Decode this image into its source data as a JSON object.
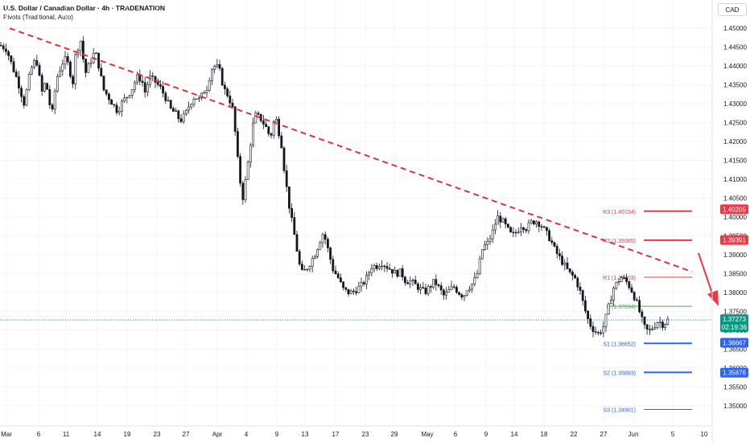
{
  "header": {
    "title": "U.S. Dollar / Canadian Dollar · 4h · TRADENATION",
    "subtitle": "Pivots (Traditional, Auto)",
    "currency": "CAD"
  },
  "colors": {
    "up": "#131722",
    "down": "#131722",
    "trend": "#e0303c",
    "pivot_r": "#f23645",
    "pivot_s": "#2962ff",
    "pivot_p": "#4caf50",
    "price_tag": "#089981",
    "grid": "#f0f3fa"
  },
  "chart_data": {
    "type": "candlestick",
    "ylim": [
      1.3455,
      1.4545
    ],
    "y_ticks": [
      "1.45000",
      "1.44500",
      "1.44000",
      "1.43500",
      "1.43000",
      "1.42500",
      "1.42000",
      "1.41500",
      "1.41000",
      "1.40500",
      "1.40000",
      "1.39500",
      "1.39000",
      "1.38500",
      "1.38000",
      "1.37500",
      "1.37000",
      "1.36500",
      "1.36000",
      "1.35500",
      "1.35000"
    ],
    "x_ticks": [
      "Mar",
      "6",
      "11",
      "14",
      "19",
      "23",
      "27",
      "Apr",
      "4",
      "9",
      "13",
      "17",
      "23",
      "29",
      "May",
      "6",
      "9",
      "14",
      "18",
      "22",
      "27",
      "Jun",
      "5",
      "10"
    ],
    "series_path": [
      [
        0,
        1.4455
      ],
      [
        8,
        1.4445
      ],
      [
        16,
        1.4395
      ],
      [
        22,
        1.436
      ],
      [
        30,
        1.43
      ],
      [
        38,
        1.439
      ],
      [
        45,
        1.442
      ],
      [
        52,
        1.433
      ],
      [
        56,
        1.4355
      ],
      [
        60,
        1.433
      ],
      [
        64,
        1.426
      ],
      [
        70,
        1.4365
      ],
      [
        76,
        1.44
      ],
      [
        80,
        1.442
      ],
      [
        86,
        1.44
      ],
      [
        90,
        1.4345
      ],
      [
        94,
        1.443
      ],
      [
        100,
        1.447
      ],
      [
        106,
        1.438
      ],
      [
        112,
        1.441
      ],
      [
        118,
        1.444
      ],
      [
        124,
        1.439
      ],
      [
        128,
        1.434
      ],
      [
        134,
        1.432
      ],
      [
        140,
        1.43
      ],
      [
        146,
        1.428
      ],
      [
        152,
        1.4305
      ],
      [
        158,
        1.432
      ],
      [
        164,
        1.434
      ],
      [
        170,
        1.437
      ],
      [
        176,
        1.4365
      ],
      [
        180,
        1.433
      ],
      [
        186,
        1.437
      ],
      [
        192,
        1.436
      ],
      [
        200,
        1.434
      ],
      [
        206,
        1.4315
      ],
      [
        212,
        1.4285
      ],
      [
        218,
        1.4275
      ],
      [
        224,
        1.4255
      ],
      [
        230,
        1.427
      ],
      [
        236,
        1.43
      ],
      [
        242,
        1.432
      ],
      [
        248,
        1.431
      ],
      [
        254,
        1.4335
      ],
      [
        258,
        1.4345
      ],
      [
        262,
        1.439
      ],
      [
        266,
        1.44
      ],
      [
        272,
        1.4395
      ],
      [
        278,
        1.434
      ],
      [
        284,
        1.432
      ],
      [
        290,
        1.428
      ],
      [
        294,
        1.418
      ],
      [
        298,
        1.41
      ],
      [
        302,
        1.405
      ],
      [
        308,
        1.414
      ],
      [
        314,
        1.424
      ],
      [
        318,
        1.427
      ],
      [
        324,
        1.426
      ],
      [
        330,
        1.424
      ],
      [
        336,
        1.421
      ],
      [
        342,
        1.427
      ],
      [
        346,
        1.423
      ],
      [
        350,
        1.419
      ],
      [
        354,
        1.411
      ],
      [
        360,
        1.402
      ],
      [
        366,
        1.395
      ],
      [
        370,
        1.39
      ],
      [
        374,
        1.385
      ],
      [
        380,
        1.386
      ],
      [
        386,
        1.388
      ],
      [
        392,
        1.3905
      ],
      [
        398,
        1.394
      ],
      [
        402,
        1.396
      ],
      [
        408,
        1.391
      ],
      [
        414,
        1.386
      ],
      [
        420,
        1.384
      ],
      [
        426,
        1.381
      ],
      [
        432,
        1.38
      ],
      [
        438,
        1.38
      ],
      [
        444,
        1.381
      ],
      [
        450,
        1.382
      ],
      [
        456,
        1.384
      ],
      [
        462,
        1.387
      ],
      [
        468,
        1.387
      ],
      [
        474,
        1.388
      ],
      [
        480,
        1.387
      ],
      [
        486,
        1.386
      ],
      [
        492,
        1.385
      ],
      [
        498,
        1.3855
      ],
      [
        504,
        1.383
      ],
      [
        510,
        1.383
      ],
      [
        516,
        1.382
      ],
      [
        522,
        1.381
      ],
      [
        528,
        1.38
      ],
      [
        534,
        1.3815
      ],
      [
        540,
        1.383
      ],
      [
        546,
        1.381
      ],
      [
        552,
        1.379
      ],
      [
        558,
        1.3805
      ],
      [
        564,
        1.3815
      ],
      [
        570,
        1.38
      ],
      [
        576,
        1.379
      ],
      [
        580,
        1.381
      ],
      [
        586,
        1.382
      ],
      [
        592,
        1.384
      ],
      [
        596,
        1.388
      ],
      [
        600,
        1.392
      ],
      [
        606,
        1.393
      ],
      [
        612,
        1.396
      ],
      [
        618,
        1.4
      ],
      [
        624,
        1.399
      ],
      [
        630,
        1.397
      ],
      [
        636,
        1.395
      ],
      [
        642,
        1.396
      ],
      [
        648,
        1.398
      ],
      [
        654,
        1.397
      ],
      [
        660,
        1.3985
      ],
      [
        666,
        1.399
      ],
      [
        672,
        1.398
      ],
      [
        678,
        1.396
      ],
      [
        684,
        1.394
      ],
      [
        690,
        1.391
      ],
      [
        696,
        1.389
      ],
      [
        702,
        1.387
      ],
      [
        708,
        1.385
      ],
      [
        714,
        1.384
      ],
      [
        720,
        1.381
      ],
      [
        726,
        1.376
      ],
      [
        732,
        1.372
      ],
      [
        738,
        1.37
      ],
      [
        744,
        1.369
      ],
      [
        750,
        1.371
      ],
      [
        756,
        1.376
      ],
      [
        762,
        1.381
      ],
      [
        768,
        1.383
      ],
      [
        772,
        1.384
      ],
      [
        778,
        1.383
      ],
      [
        784,
        1.381
      ],
      [
        790,
        1.378
      ],
      [
        796,
        1.374
      ],
      [
        800,
        1.371
      ],
      [
        806,
        1.3695
      ],
      [
        812,
        1.371
      ],
      [
        818,
        1.3725
      ],
      [
        824,
        1.3715
      ],
      [
        830,
        1.3727
      ]
    ],
    "price_tags": [
      {
        "value": 1.40205,
        "label": "1.40205",
        "color": "#f23645"
      },
      {
        "value": 1.39391,
        "label": "1.39391",
        "color": "#f23645"
      },
      {
        "value": 1.37273,
        "label": "1.37273",
        "sub": "02:19:36",
        "color": "#089981"
      },
      {
        "value": 1.36667,
        "label": "1.36667",
        "color": "#2962ff"
      },
      {
        "value": 1.35876,
        "label": "1.35876",
        "color": "#2962ff"
      }
    ],
    "pivots": [
      {
        "label": "R3 (1.40154)",
        "value": 1.40154,
        "color": "#f23645",
        "thick": true
      },
      {
        "label": "R2 (1.39385)",
        "value": 1.39385,
        "color": "#f23645",
        "thick": true
      },
      {
        "label": "R1 (1.38403)",
        "value": 1.38403,
        "color": "#f23645",
        "thick": false
      },
      {
        "label": "P (1.37634)",
        "value": 1.37634,
        "color": "#4caf50",
        "thick": false
      },
      {
        "label": "S1 (1.36652)",
        "value": 1.36652,
        "color": "#2962ff",
        "thick": true
      },
      {
        "label": "S2 (1.35883)",
        "value": 1.35883,
        "color": "#2962ff",
        "thick": true
      },
      {
        "label": "S3 (1.34901)",
        "value": 1.34901,
        "color": "#2962ff",
        "thick": false
      }
    ],
    "trendline": [
      [
        12,
        1.45
      ],
      [
        860,
        1.3855
      ]
    ],
    "current_price": 1.37273
  }
}
